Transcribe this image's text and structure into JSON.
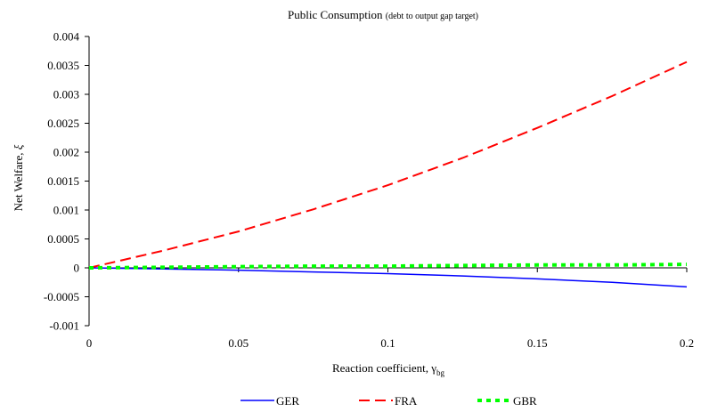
{
  "chart_data": {
    "type": "line",
    "title": "Public Consumption",
    "subtitle": "(debt to output gap target)",
    "xlabel": "Reaction coefficient, ",
    "xlabel_symbol": "γ",
    "xlabel_subscript": "bg",
    "ylabel": "Net Welfare, ",
    "ylabel_symbol": "ξ",
    "xlim": [
      0,
      0.2
    ],
    "ylim": [
      -0.001,
      0.004
    ],
    "x_ticks": [
      0,
      0.05,
      0.1,
      0.15,
      0.2
    ],
    "x_tick_labels": [
      "0",
      "0.05",
      "0.1",
      "0.15",
      "0.2"
    ],
    "y_ticks": [
      -0.001,
      -0.0005,
      0,
      0.0005,
      0.001,
      0.0015,
      0.002,
      0.0025,
      0.003,
      0.0035,
      0.004
    ],
    "y_tick_labels": [
      "-0.001",
      "-0.0005",
      "0",
      "0.0005",
      "0.001",
      "0.0015",
      "0.002",
      "0.0025",
      "0.003",
      "0.0035",
      "0.004"
    ],
    "grid": false,
    "legend_position": "bottom",
    "x": [
      0,
      0.025,
      0.05,
      0.075,
      0.1,
      0.125,
      0.15,
      0.175,
      0.2
    ],
    "series": [
      {
        "name": "GER",
        "color": "#0000ff",
        "style": "solid",
        "values": [
          0,
          -2e-05,
          -4e-05,
          -7e-05,
          -0.0001,
          -0.00014,
          -0.00019,
          -0.00025,
          -0.00033
        ]
      },
      {
        "name": "FRA",
        "color": "#ff0000",
        "style": "dashed",
        "values": [
          0,
          0.0003,
          0.00063,
          0.00101,
          0.00143,
          0.0019,
          0.00242,
          0.00297,
          0.00356
        ]
      },
      {
        "name": "GBR",
        "color": "#00ff00",
        "style": "dotted",
        "values": [
          0,
          1e-05,
          2e-05,
          3e-05,
          3e-05,
          4e-05,
          5e-05,
          5e-05,
          6e-05
        ]
      }
    ]
  }
}
